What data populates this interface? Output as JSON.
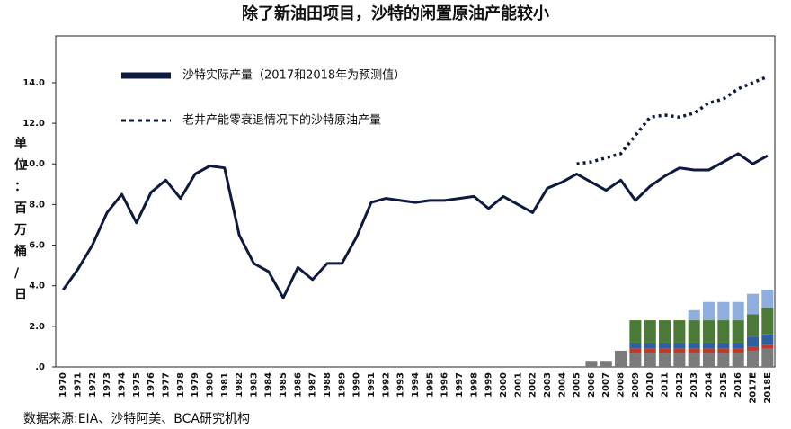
{
  "chart_data": {
    "type": "line",
    "title": "除了新油田项目，沙特的闲置原油产能较小",
    "y_label": "单位：百万桶/日",
    "source": "数据来源:EIA、沙特阿美、BCA研究机构",
    "categories": [
      "1970",
      "1971",
      "1972",
      "1973",
      "1974",
      "1975",
      "1976",
      "1977",
      "1978",
      "1979",
      "1980",
      "1981",
      "1982",
      "1983",
      "1984",
      "1985",
      "1986",
      "1987",
      "1988",
      "1989",
      "1990",
      "1991",
      "1992",
      "1993",
      "1994",
      "1995",
      "1996",
      "1997",
      "1998",
      "1999",
      "2000",
      "2001",
      "2002",
      "2003",
      "2004",
      "2005",
      "2006",
      "2007",
      "2008",
      "2009",
      "2010",
      "2011",
      "2012",
      "2013",
      "2014",
      "2015",
      "2016",
      "2017E",
      "2018E"
    ],
    "ylim": [
      0,
      16.3
    ],
    "yticks": [
      {
        "value": 0,
        "label": ".0"
      },
      {
        "value": 2,
        "label": "2.0"
      },
      {
        "value": 4,
        "label": "4.0"
      },
      {
        "value": 6,
        "label": "6.0"
      },
      {
        "value": 8,
        "label": "8.0"
      },
      {
        "value": 10,
        "label": "10.0"
      },
      {
        "value": 12,
        "label": "12.0"
      },
      {
        "value": 14,
        "label": "14.0"
      }
    ],
    "series": [
      {
        "name": "沙特实际产量（2017和2018年为预测值）",
        "color": "#0d1a3f",
        "style": "solid",
        "values": [
          3.8,
          4.8,
          6.0,
          7.6,
          8.5,
          7.1,
          8.6,
          9.2,
          8.3,
          9.5,
          9.9,
          9.8,
          6.5,
          5.1,
          4.7,
          3.4,
          4.9,
          4.3,
          5.1,
          5.1,
          6.4,
          8.1,
          8.3,
          8.2,
          8.1,
          8.2,
          8.2,
          8.3,
          8.4,
          7.8,
          8.4,
          8.0,
          7.6,
          8.8,
          9.1,
          9.5,
          9.1,
          8.7,
          9.2,
          8.2,
          8.9,
          9.4,
          9.8,
          9.7,
          9.7,
          10.1,
          10.5,
          10.0,
          10.4
        ]
      },
      {
        "name": "老井产能零衰退情况下的沙特原油产量",
        "color": "#0d1a3f",
        "style": "dotted",
        "values": [
          null,
          null,
          null,
          null,
          null,
          null,
          null,
          null,
          null,
          null,
          null,
          null,
          null,
          null,
          null,
          null,
          null,
          null,
          null,
          null,
          null,
          null,
          null,
          null,
          null,
          null,
          null,
          null,
          null,
          null,
          null,
          null,
          null,
          null,
          null,
          10.0,
          10.1,
          10.3,
          10.5,
          11.4,
          12.3,
          12.4,
          12.3,
          12.5,
          13.0,
          13.2,
          13.7,
          14.0,
          14.3
        ]
      }
    ],
    "bar_series": [
      {
        "color": "#7a7a7a",
        "values": [
          null,
          null,
          null,
          null,
          null,
          null,
          null,
          null,
          null,
          null,
          null,
          null,
          null,
          null,
          null,
          null,
          null,
          null,
          null,
          null,
          null,
          null,
          null,
          null,
          null,
          null,
          null,
          null,
          null,
          null,
          null,
          null,
          null,
          null,
          null,
          null,
          0.3,
          0.3,
          0.8,
          0.7,
          0.7,
          0.7,
          0.7,
          0.7,
          0.7,
          0.7,
          0.7,
          0.8,
          0.9
        ]
      },
      {
        "color": "#c0392b",
        "values": [
          null,
          null,
          null,
          null,
          null,
          null,
          null,
          null,
          null,
          null,
          null,
          null,
          null,
          null,
          null,
          null,
          null,
          null,
          null,
          null,
          null,
          null,
          null,
          null,
          null,
          null,
          null,
          null,
          null,
          null,
          null,
          null,
          null,
          null,
          null,
          null,
          null,
          null,
          null,
          0.2,
          0.2,
          0.2,
          0.2,
          0.2,
          0.2,
          0.2,
          0.2,
          0.2,
          0.2
        ]
      },
      {
        "color": "#2e5fa3",
        "values": [
          null,
          null,
          null,
          null,
          null,
          null,
          null,
          null,
          null,
          null,
          null,
          null,
          null,
          null,
          null,
          null,
          null,
          null,
          null,
          null,
          null,
          null,
          null,
          null,
          null,
          null,
          null,
          null,
          null,
          null,
          null,
          null,
          null,
          null,
          null,
          null,
          null,
          null,
          null,
          0.3,
          0.3,
          0.3,
          0.3,
          0.3,
          0.3,
          0.3,
          0.3,
          0.5,
          0.5
        ]
      },
      {
        "color": "#4a7a35",
        "values": [
          null,
          null,
          null,
          null,
          null,
          null,
          null,
          null,
          null,
          null,
          null,
          null,
          null,
          null,
          null,
          null,
          null,
          null,
          null,
          null,
          null,
          null,
          null,
          null,
          null,
          null,
          null,
          null,
          null,
          null,
          null,
          null,
          null,
          null,
          null,
          null,
          null,
          null,
          null,
          1.1,
          1.1,
          1.1,
          1.1,
          1.1,
          1.1,
          1.1,
          1.1,
          1.1,
          1.3
        ]
      },
      {
        "color": "#8eaee0",
        "values": [
          null,
          null,
          null,
          null,
          null,
          null,
          null,
          null,
          null,
          null,
          null,
          null,
          null,
          null,
          null,
          null,
          null,
          null,
          null,
          null,
          null,
          null,
          null,
          null,
          null,
          null,
          null,
          null,
          null,
          null,
          null,
          null,
          null,
          null,
          null,
          null,
          null,
          null,
          null,
          null,
          null,
          null,
          null,
          0.5,
          0.9,
          0.9,
          0.9,
          1.0,
          0.9
        ]
      }
    ]
  }
}
